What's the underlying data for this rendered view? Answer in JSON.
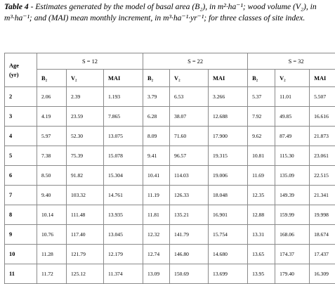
{
  "caption": {
    "label": "Table 4",
    "text": " - Estimates generated by the model of basal area (B₂), in m²·ha⁻¹; wood volume (V₂), in m³·ha⁻¹; and (MAI) mean monthly increment, in m³·ha⁻¹·yr⁻¹; for three classes of site index."
  },
  "table": {
    "age_header_line1": "Age",
    "age_header_line2": "(yr)",
    "groups": [
      "S = 12",
      "S = 22",
      "S = 32"
    ],
    "subheaders": [
      "B₂",
      "V₂",
      "MAI",
      "B₂",
      "V₂",
      "MAI",
      "B₂",
      "V₂",
      "MAI"
    ],
    "rows": [
      [
        "2",
        "2.06",
        "2.39",
        "1.193",
        "3.79",
        "6.53",
        "3.266",
        "5.37",
        "11.01",
        "5.507"
      ],
      [
        "3",
        "4.19",
        "23.59",
        "7.865",
        "6.28",
        "38.07",
        "12.688",
        "7.92",
        "49.85",
        "16.616"
      ],
      [
        "4",
        "5.97",
        "52.30",
        "13.075",
        "8.09",
        "71.60",
        "17.900",
        "9.62",
        "87.49",
        "21.873"
      ],
      [
        "5",
        "7.38",
        "75.39",
        "15.078",
        "9.41",
        "96.57",
        "19.315",
        "10.81",
        "115.30",
        "23.061"
      ],
      [
        "6",
        "8.50",
        "91.82",
        "15.304",
        "10.41",
        "114.03",
        "19.006",
        "11.69",
        "135.09",
        "22.515"
      ],
      [
        "7",
        "9.40",
        "103.32",
        "14.761",
        "11.19",
        "126.33",
        "18.048",
        "12.35",
        "149.39",
        "21.341"
      ],
      [
        "8",
        "10.14",
        "111.48",
        "13.935",
        "11.81",
        "135.21",
        "16.901",
        "12.88",
        "159.99",
        "19.998"
      ],
      [
        "9",
        "10.76",
        "117.40",
        "13.045",
        "12.32",
        "141.79",
        "15.754",
        "13.31",
        "168.06",
        "18.674"
      ],
      [
        "10",
        "11.28",
        "121.79",
        "12.179",
        "12.74",
        "146.80",
        "14.680",
        "13.65",
        "174.37",
        "17.437"
      ],
      [
        "11",
        "11.72",
        "125.12",
        "11.374",
        "13.09",
        "150.69",
        "13.699",
        "13.95",
        "179.40",
        "16.309"
      ]
    ]
  }
}
